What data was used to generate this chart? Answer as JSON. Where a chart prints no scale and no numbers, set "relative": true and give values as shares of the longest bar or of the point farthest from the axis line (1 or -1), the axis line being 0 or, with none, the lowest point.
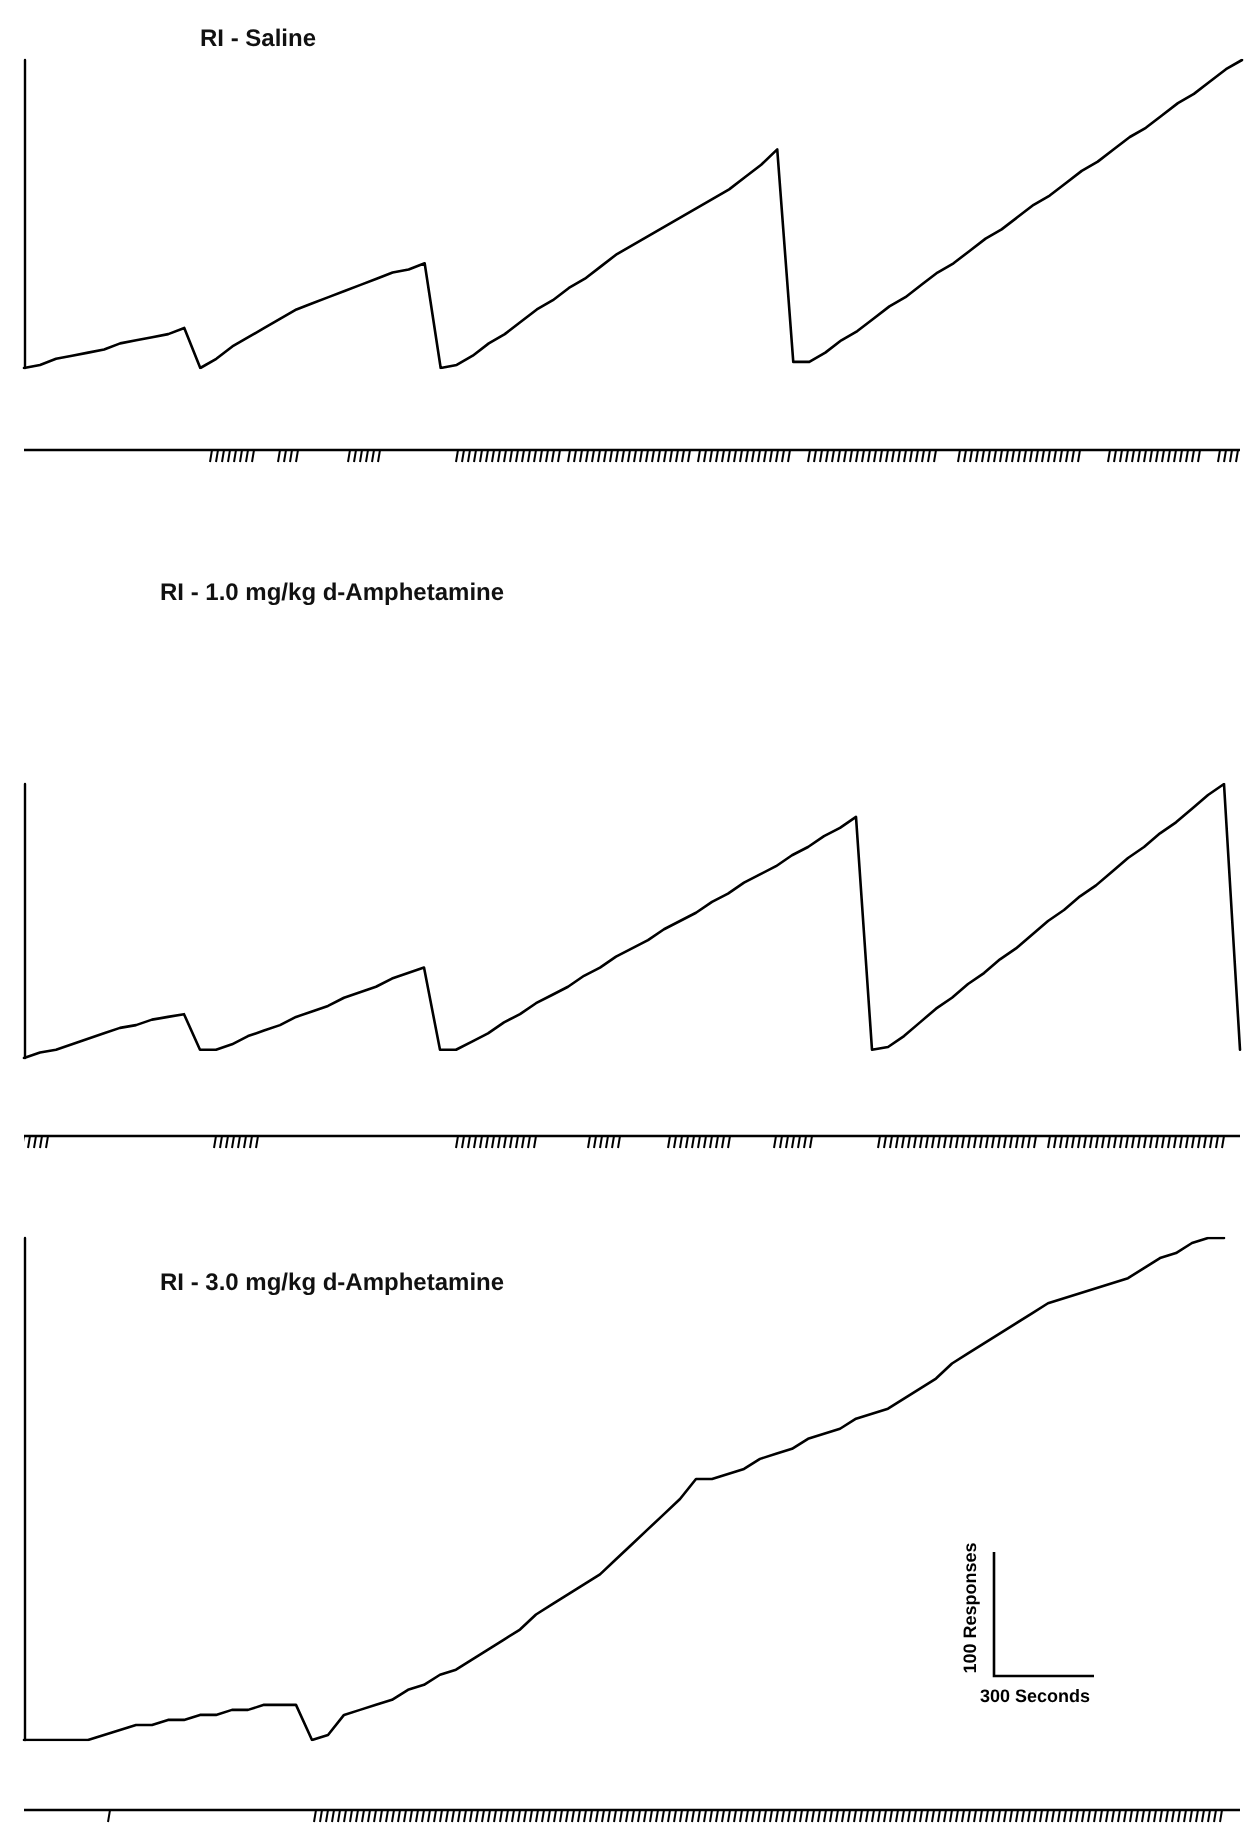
{
  "chart_data": [
    {
      "type": "line",
      "title": "RI - Saline",
      "relative": true,
      "tick_labels": false,
      "marker": "none",
      "categories": [
        null,
        null,
        null,
        null,
        null,
        null,
        null,
        null,
        null,
        null,
        null,
        null,
        null,
        null,
        null,
        null,
        null,
        null,
        null,
        null,
        null,
        null,
        null,
        null,
        null,
        null,
        null,
        null,
        null,
        null,
        null,
        null,
        null,
        null,
        null,
        null,
        null,
        null,
        null,
        null,
        null,
        null,
        null,
        null,
        null,
        null,
        null,
        null,
        null,
        null,
        null,
        null,
        null,
        null,
        null,
        null,
        null,
        null,
        null,
        null,
        null,
        null,
        null,
        null,
        null,
        null,
        null,
        null,
        null,
        null,
        null,
        null,
        null,
        null,
        null,
        null,
        null
      ],
      "series": [
        {
          "color": "#000000",
          "values": [
            0,
            0.01,
            0.03,
            0.04,
            0.05,
            0.06,
            0.08,
            0.09,
            0.1,
            0.11,
            0.13,
            0,
            0.03,
            0.07,
            0.1,
            0.13,
            0.16,
            0.19,
            0.21,
            0.23,
            0.25,
            0.27,
            0.29,
            0.31,
            0.32,
            0.34,
            0,
            0.01,
            0.04,
            0.08,
            0.11,
            0.15,
            0.19,
            0.22,
            0.26,
            0.29,
            0.33,
            0.37,
            0.4,
            0.43,
            0.46,
            0.49,
            0.52,
            0.55,
            0.58,
            0.62,
            0.66,
            0.71,
            0.02,
            0.02,
            0.05,
            0.09,
            0.12,
            0.16,
            0.2,
            0.23,
            0.27,
            0.31,
            0.34,
            0.38,
            0.42,
            0.45,
            0.49,
            0.53,
            0.56,
            0.6,
            0.64,
            0.67,
            0.71,
            0.75,
            0.78,
            0.82,
            0.86,
            0.89,
            0.93,
            0.97,
            1.0
          ]
        }
      ]
    },
    {
      "type": "line",
      "title": "RI - 1.0 mg/kg d-Amphetamine",
      "relative": true,
      "tick_labels": false,
      "marker": "none",
      "categories": [
        null,
        null,
        null,
        null,
        null,
        null,
        null,
        null,
        null,
        null,
        null,
        null,
        null,
        null,
        null,
        null,
        null,
        null,
        null,
        null,
        null,
        null,
        null,
        null,
        null,
        null,
        null,
        null,
        null,
        null,
        null,
        null,
        null,
        null,
        null,
        null,
        null,
        null,
        null,
        null,
        null,
        null,
        null,
        null,
        null,
        null,
        null,
        null,
        null,
        null,
        null,
        null,
        null,
        null,
        null,
        null,
        null,
        null,
        null,
        null,
        null,
        null,
        null,
        null,
        null,
        null,
        null,
        null,
        null,
        null,
        null,
        null,
        null,
        null,
        null,
        null,
        null
      ],
      "series": [
        {
          "color": "#000000",
          "values": [
            0,
            0.02,
            0.03,
            0.05,
            0.07,
            0.09,
            0.11,
            0.12,
            0.14,
            0.15,
            0.16,
            0.03,
            0.03,
            0.05,
            0.08,
            0.1,
            0.12,
            0.15,
            0.17,
            0.19,
            0.22,
            0.24,
            0.26,
            0.29,
            0.31,
            0.33,
            0.03,
            0.03,
            0.06,
            0.09,
            0.13,
            0.16,
            0.2,
            0.23,
            0.26,
            0.3,
            0.33,
            0.37,
            0.4,
            0.43,
            0.47,
            0.5,
            0.53,
            0.57,
            0.6,
            0.64,
            0.67,
            0.7,
            0.74,
            0.77,
            0.81,
            0.84,
            0.88,
            0.03,
            0.04,
            0.08,
            0.13,
            0.18,
            0.22,
            0.27,
            0.31,
            0.36,
            0.4,
            0.45,
            0.5,
            0.54,
            0.59,
            0.63,
            0.68,
            0.73,
            0.77,
            0.82,
            0.86,
            0.91,
            0.96,
            1.0,
            0.03
          ]
        }
      ]
    },
    {
      "type": "line",
      "title": "RI - 3.0 mg/kg d-Amphetamine",
      "relative": true,
      "tick_labels": false,
      "marker": "none",
      "annotations": [
        "100 Responses",
        "300 Seconds"
      ],
      "categories": [
        null,
        null,
        null,
        null,
        null,
        null,
        null,
        null,
        null,
        null,
        null,
        null,
        null,
        null,
        null,
        null,
        null,
        null,
        null,
        null,
        null,
        null,
        null,
        null,
        null,
        null,
        null,
        null,
        null,
        null,
        null,
        null,
        null,
        null,
        null,
        null,
        null,
        null,
        null,
        null,
        null,
        null,
        null,
        null,
        null,
        null,
        null,
        null,
        null,
        null,
        null,
        null,
        null,
        null,
        null,
        null,
        null,
        null,
        null,
        null,
        null,
        null,
        null,
        null,
        null,
        null,
        null,
        null,
        null,
        null,
        null,
        null,
        null,
        null,
        null,
        null
      ],
      "series": [
        {
          "color": "#000000",
          "values": [
            0,
            0,
            0,
            0,
            0,
            0.01,
            0.02,
            0.03,
            0.03,
            0.04,
            0.04,
            0.05,
            0.05,
            0.06,
            0.06,
            0.07,
            0.07,
            0.07,
            0,
            0.01,
            0.05,
            0.06,
            0.07,
            0.08,
            0.1,
            0.11,
            0.13,
            0.14,
            0.16,
            0.18,
            0.2,
            0.22,
            0.25,
            0.27,
            0.29,
            0.31,
            0.33,
            0.36,
            0.39,
            0.42,
            0.45,
            0.48,
            0.52,
            0.52,
            0.53,
            0.54,
            0.56,
            0.57,
            0.58,
            0.6,
            0.61,
            0.62,
            0.64,
            0.65,
            0.66,
            0.68,
            0.7,
            0.72,
            0.75,
            0.77,
            0.79,
            0.81,
            0.83,
            0.85,
            0.87,
            0.88,
            0.89,
            0.9,
            0.91,
            0.92,
            0.94,
            0.96,
            0.97,
            0.99,
            1.0,
            1.0
          ]
        }
      ]
    }
  ]
}
